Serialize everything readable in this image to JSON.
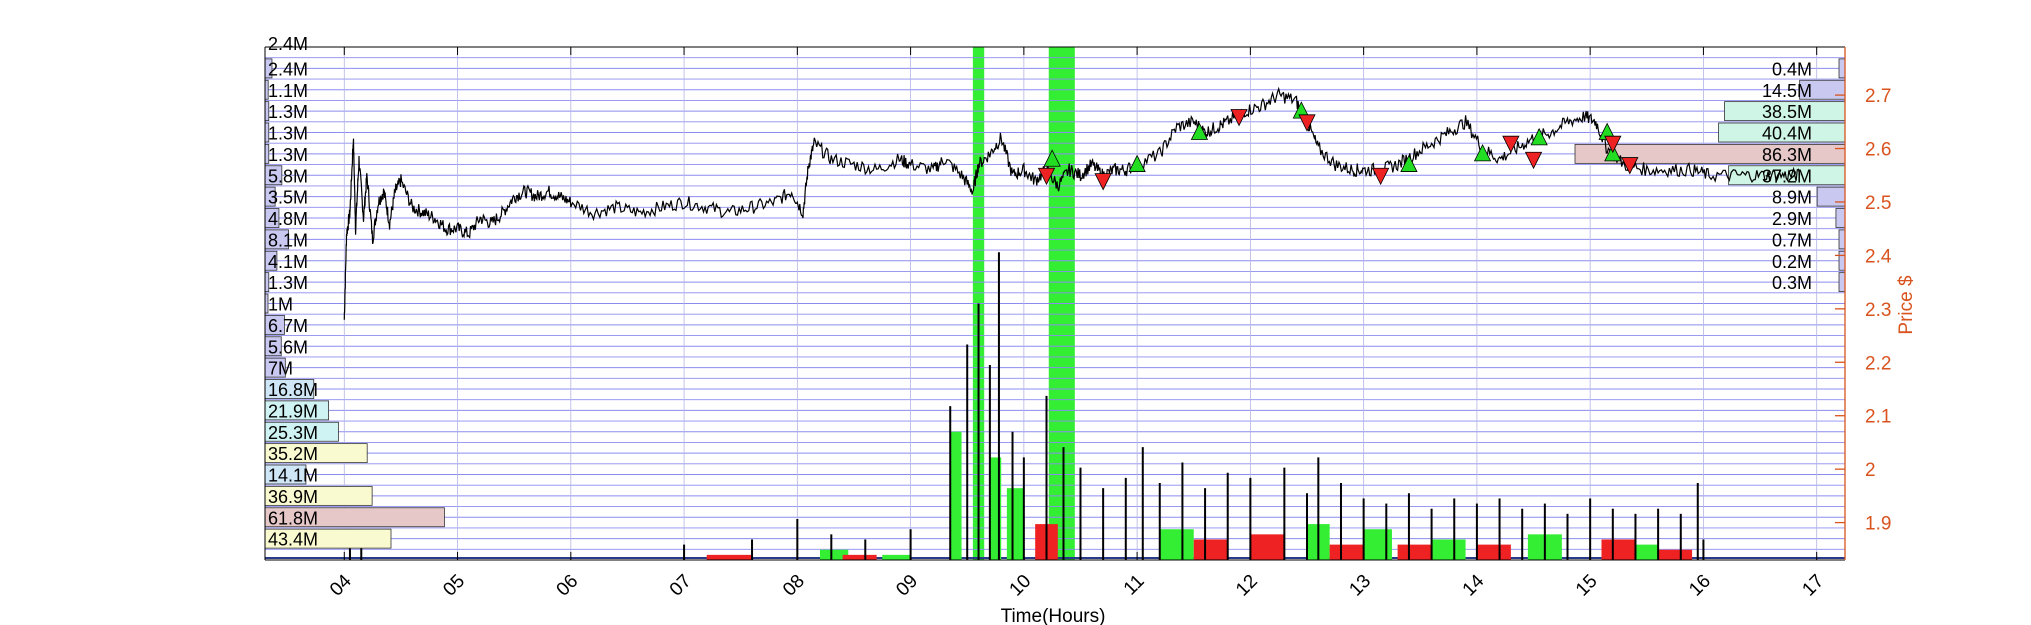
{
  "chart_data": {
    "type": "line",
    "xlabel": "Time(Hours)",
    "ylabel": "Price $",
    "x_ticks": [
      "04",
      "05",
      "06",
      "07",
      "08",
      "09",
      "10",
      "11",
      "12",
      "13",
      "14",
      "15",
      "16",
      "17"
    ],
    "xlim": [
      3.3,
      17.25
    ],
    "ylim": [
      1.83,
      2.79
    ],
    "y_ticks": [
      "1.9",
      "2",
      "2.1",
      "2.2",
      "2.3",
      "2.4",
      "2.5",
      "2.6",
      "2.7"
    ],
    "top_left_label": "2.4M",
    "left_volume_profile": [
      {
        "label": "2.4M",
        "value": 2.4,
        "level": 2.75,
        "color": "#c8c8f0"
      },
      {
        "label": "1.1M",
        "value": 1.1,
        "level": 2.71,
        "color": "#c8c8f0"
      },
      {
        "label": "1.3M",
        "value": 1.3,
        "level": 2.67,
        "color": "#c8c8f0"
      },
      {
        "label": "1.3M",
        "value": 1.3,
        "level": 2.63,
        "color": "#c8c8f0"
      },
      {
        "label": "1.3M",
        "value": 1.3,
        "level": 2.59,
        "color": "#c8c8f0"
      },
      {
        "label": "5.8M",
        "value": 5.8,
        "level": 2.55,
        "color": "#c8c8f0"
      },
      {
        "label": "3.5M",
        "value": 3.5,
        "level": 2.51,
        "color": "#c8c8f0"
      },
      {
        "label": "4.8M",
        "value": 4.8,
        "level": 2.47,
        "color": "#c8c8f0"
      },
      {
        "label": "8.1M",
        "value": 8.1,
        "level": 2.43,
        "color": "#c8c8f0"
      },
      {
        "label": "4.1M",
        "value": 4.1,
        "level": 2.39,
        "color": "#c8c8f0"
      },
      {
        "label": "1.3M",
        "value": 1.3,
        "level": 2.35,
        "color": "#c8c8f0"
      },
      {
        "label": "1M",
        "value": 1.0,
        "level": 2.31,
        "color": "#c8c8f0"
      },
      {
        "label": "6.7M",
        "value": 6.7,
        "level": 2.27,
        "color": "#c8c8f0"
      },
      {
        "label": "5.6M",
        "value": 5.6,
        "level": 2.23,
        "color": "#c8c8f0"
      },
      {
        "label": "7M",
        "value": 7.0,
        "level": 2.19,
        "color": "#c8c8f0"
      },
      {
        "label": "16.8M",
        "value": 16.8,
        "level": 2.15,
        "color": "#cfe6f7"
      },
      {
        "label": "21.9M",
        "value": 21.9,
        "level": 2.11,
        "color": "#cff2f2"
      },
      {
        "label": "25.3M",
        "value": 25.3,
        "level": 2.07,
        "color": "#cff2f2"
      },
      {
        "label": "35.2M",
        "value": 35.2,
        "level": 2.03,
        "color": "#fafad0"
      },
      {
        "label": "14.1M",
        "value": 14.1,
        "level": 1.99,
        "color": "#cfe6f7"
      },
      {
        "label": "36.9M",
        "value": 36.9,
        "level": 1.95,
        "color": "#fafad0"
      },
      {
        "label": "61.8M",
        "value": 61.8,
        "level": 1.91,
        "color": "#e6c8c8"
      },
      {
        "label": "43.4M",
        "value": 43.4,
        "level": 1.87,
        "color": "#fafad0"
      }
    ],
    "right_volume_profile": [
      {
        "label": "0.4M",
        "value": 0.4,
        "level": 2.75,
        "color": "#c8c8f0"
      },
      {
        "label": "14.5M",
        "value": 14.5,
        "level": 2.71,
        "color": "#c8c8f0"
      },
      {
        "label": "38.5M",
        "value": 38.5,
        "level": 2.67,
        "color": "#cff5e6"
      },
      {
        "label": "40.4M",
        "value": 40.4,
        "level": 2.63,
        "color": "#cff5e6"
      },
      {
        "label": "86.3M",
        "value": 86.3,
        "level": 2.59,
        "color": "#e6c8c8"
      },
      {
        "label": "37.2M",
        "value": 37.2,
        "level": 2.55,
        "color": "#cff5e6"
      },
      {
        "label": "8.9M",
        "value": 8.9,
        "level": 2.51,
        "color": "#c8c8f0"
      },
      {
        "label": "2.9M",
        "value": 2.9,
        "level": 2.47,
        "color": "#c8c8f0"
      },
      {
        "label": "0.7M",
        "value": 0.7,
        "level": 2.43,
        "color": "#c8c8f0"
      },
      {
        "label": "0.2M",
        "value": 0.2,
        "level": 2.39,
        "color": "#c8c8f0"
      },
      {
        "label": "0.3M",
        "value": 0.3,
        "level": 2.35,
        "color": "#c8c8f0"
      }
    ],
    "price_path": [
      [
        4.0,
        2.28
      ],
      [
        4.02,
        2.44
      ],
      [
        4.05,
        2.48
      ],
      [
        4.08,
        2.62
      ],
      [
        4.1,
        2.45
      ],
      [
        4.13,
        2.58
      ],
      [
        4.17,
        2.47
      ],
      [
        4.2,
        2.55
      ],
      [
        4.25,
        2.43
      ],
      [
        4.3,
        2.5
      ],
      [
        4.35,
        2.52
      ],
      [
        4.4,
        2.46
      ],
      [
        4.45,
        2.52
      ],
      [
        4.5,
        2.54
      ],
      [
        4.6,
        2.49
      ],
      [
        4.7,
        2.48
      ],
      [
        4.8,
        2.47
      ],
      [
        4.9,
        2.45
      ],
      [
        5.0,
        2.45
      ],
      [
        5.1,
        2.44
      ],
      [
        5.2,
        2.47
      ],
      [
        5.3,
        2.46
      ],
      [
        5.4,
        2.48
      ],
      [
        5.5,
        2.51
      ],
      [
        5.6,
        2.52
      ],
      [
        5.7,
        2.51
      ],
      [
        5.8,
        2.52
      ],
      [
        5.9,
        2.51
      ],
      [
        6.0,
        2.5
      ],
      [
        6.2,
        2.48
      ],
      [
        6.4,
        2.49
      ],
      [
        6.6,
        2.48
      ],
      [
        6.8,
        2.49
      ],
      [
        7.0,
        2.5
      ],
      [
        7.2,
        2.49
      ],
      [
        7.4,
        2.48
      ],
      [
        7.6,
        2.49
      ],
      [
        7.8,
        2.5
      ],
      [
        7.95,
        2.52
      ],
      [
        8.05,
        2.48
      ],
      [
        8.1,
        2.57
      ],
      [
        8.15,
        2.61
      ],
      [
        8.3,
        2.58
      ],
      [
        8.5,
        2.57
      ],
      [
        8.7,
        2.56
      ],
      [
        8.9,
        2.58
      ],
      [
        9.0,
        2.57
      ],
      [
        9.2,
        2.56
      ],
      [
        9.3,
        2.58
      ],
      [
        9.45,
        2.55
      ],
      [
        9.55,
        2.52
      ],
      [
        9.6,
        2.57
      ],
      [
        9.7,
        2.59
      ],
      [
        9.8,
        2.62
      ],
      [
        9.9,
        2.55
      ],
      [
        10.0,
        2.56
      ],
      [
        10.1,
        2.54
      ],
      [
        10.2,
        2.56
      ],
      [
        10.3,
        2.53
      ],
      [
        10.4,
        2.56
      ],
      [
        10.5,
        2.55
      ],
      [
        10.6,
        2.57
      ],
      [
        10.7,
        2.55
      ],
      [
        10.8,
        2.56
      ],
      [
        10.9,
        2.56
      ],
      [
        11.0,
        2.57
      ],
      [
        11.2,
        2.59
      ],
      [
        11.35,
        2.64
      ],
      [
        11.5,
        2.65
      ],
      [
        11.6,
        2.63
      ],
      [
        11.7,
        2.64
      ],
      [
        11.8,
        2.65
      ],
      [
        11.95,
        2.67
      ],
      [
        12.1,
        2.68
      ],
      [
        12.25,
        2.7
      ],
      [
        12.4,
        2.69
      ],
      [
        12.5,
        2.65
      ],
      [
        12.6,
        2.6
      ],
      [
        12.75,
        2.57
      ],
      [
        12.9,
        2.56
      ],
      [
        13.0,
        2.56
      ],
      [
        13.15,
        2.56
      ],
      [
        13.3,
        2.57
      ],
      [
        13.45,
        2.59
      ],
      [
        13.6,
        2.61
      ],
      [
        13.75,
        2.63
      ],
      [
        13.9,
        2.65
      ],
      [
        14.05,
        2.6
      ],
      [
        14.2,
        2.58
      ],
      [
        14.35,
        2.6
      ],
      [
        14.5,
        2.62
      ],
      [
        14.65,
        2.63
      ],
      [
        14.8,
        2.65
      ],
      [
        14.95,
        2.66
      ],
      [
        15.05,
        2.65
      ],
      [
        15.15,
        2.6
      ],
      [
        15.3,
        2.57
      ],
      [
        15.5,
        2.56
      ],
      [
        15.7,
        2.56
      ],
      [
        15.9,
        2.56
      ],
      [
        16.05,
        2.55
      ],
      [
        16.3,
        2.55
      ],
      [
        16.5,
        2.55
      ],
      [
        16.7,
        2.55
      ],
      [
        16.85,
        2.55
      ]
    ],
    "buy_markers": [
      [
        10.25,
        2.58
      ],
      [
        11.0,
        2.57
      ],
      [
        11.55,
        2.63
      ],
      [
        12.45,
        2.67
      ],
      [
        13.4,
        2.57
      ],
      [
        14.05,
        2.59
      ],
      [
        14.55,
        2.62
      ],
      [
        15.15,
        2.63
      ],
      [
        15.2,
        2.59
      ]
    ],
    "sell_markers": [
      [
        10.2,
        2.55
      ],
      [
        10.7,
        2.54
      ],
      [
        11.9,
        2.66
      ],
      [
        12.5,
        2.65
      ],
      [
        13.15,
        2.55
      ],
      [
        14.3,
        2.61
      ],
      [
        14.5,
        2.58
      ],
      [
        15.2,
        2.61
      ],
      [
        15.35,
        2.57
      ]
    ],
    "highlight_bands": [
      [
        9.55,
        9.65
      ],
      [
        10.22,
        10.45
      ]
    ],
    "volume_peaks": [
      [
        4.05,
        0.06
      ],
      [
        4.15,
        0.05
      ],
      [
        7.0,
        0.03
      ],
      [
        7.6,
        0.04
      ],
      [
        8.0,
        0.08
      ],
      [
        8.3,
        0.05
      ],
      [
        8.6,
        0.04
      ],
      [
        9.0,
        0.06
      ],
      [
        9.35,
        0.3
      ],
      [
        9.5,
        0.42
      ],
      [
        9.6,
        0.5
      ],
      [
        9.7,
        0.38
      ],
      [
        9.78,
        0.6
      ],
      [
        9.9,
        0.25
      ],
      [
        10.0,
        0.2
      ],
      [
        10.2,
        0.32
      ],
      [
        10.35,
        0.22
      ],
      [
        10.5,
        0.18
      ],
      [
        10.7,
        0.14
      ],
      [
        10.9,
        0.16
      ],
      [
        11.05,
        0.22
      ],
      [
        11.2,
        0.15
      ],
      [
        11.4,
        0.19
      ],
      [
        11.6,
        0.14
      ],
      [
        11.8,
        0.17
      ],
      [
        12.0,
        0.16
      ],
      [
        12.3,
        0.18
      ],
      [
        12.5,
        0.13
      ],
      [
        12.6,
        0.2
      ],
      [
        12.8,
        0.15
      ],
      [
        13.0,
        0.12
      ],
      [
        13.2,
        0.11
      ],
      [
        13.4,
        0.13
      ],
      [
        13.6,
        0.1
      ],
      [
        13.8,
        0.12
      ],
      [
        14.0,
        0.11
      ],
      [
        14.2,
        0.12
      ],
      [
        14.4,
        0.1
      ],
      [
        14.6,
        0.11
      ],
      [
        14.8,
        0.09
      ],
      [
        15.0,
        0.12
      ],
      [
        15.2,
        0.1
      ],
      [
        15.4,
        0.09
      ],
      [
        15.6,
        0.1
      ],
      [
        15.8,
        0.09
      ],
      [
        15.95,
        0.15
      ],
      [
        16.0,
        0.04
      ]
    ],
    "green_volume_blocks": [
      [
        8.2,
        8.45,
        0.02
      ],
      [
        8.75,
        9.0,
        0.01
      ],
      [
        9.35,
        9.45,
        0.25
      ],
      [
        9.7,
        9.8,
        0.2
      ],
      [
        9.85,
        10.0,
        0.14
      ],
      [
        11.2,
        11.5,
        0.06
      ],
      [
        12.5,
        12.7,
        0.07
      ],
      [
        13.0,
        13.25,
        0.06
      ],
      [
        13.6,
        13.9,
        0.04
      ],
      [
        14.45,
        14.75,
        0.05
      ],
      [
        15.4,
        15.6,
        0.03
      ]
    ],
    "red_volume_blocks": [
      [
        7.2,
        7.6,
        0.01
      ],
      [
        8.4,
        8.7,
        0.01
      ],
      [
        10.1,
        10.3,
        0.07
      ],
      [
        11.5,
        11.8,
        0.04
      ],
      [
        12.0,
        12.3,
        0.05
      ],
      [
        12.7,
        13.0,
        0.03
      ],
      [
        13.3,
        13.6,
        0.03
      ],
      [
        14.0,
        14.3,
        0.03
      ],
      [
        15.1,
        15.4,
        0.04
      ],
      [
        15.6,
        15.9,
        0.02
      ]
    ]
  }
}
